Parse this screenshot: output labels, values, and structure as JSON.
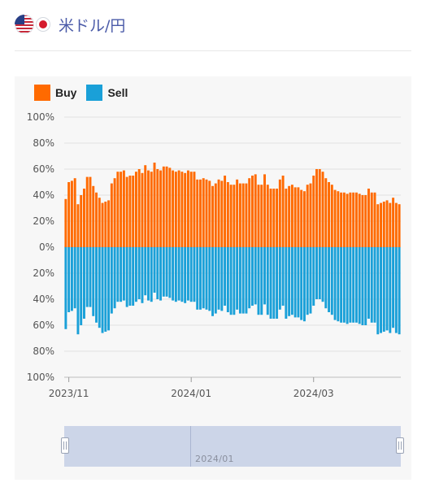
{
  "header": {
    "title": "米ドル/円",
    "flag_icons": [
      "us-flag-icon",
      "japan-flag-icon"
    ]
  },
  "zoom": {
    "label": "2024/01"
  },
  "chart_data": {
    "type": "bar",
    "legend": [
      {
        "name": "Buy",
        "color": "#ff6a00"
      },
      {
        "name": "Sell",
        "color": "#1aa0d8"
      }
    ],
    "legend_position": "top-left",
    "grid": true,
    "y_tick_labels": [
      "100%",
      "80%",
      "60%",
      "40%",
      "20%",
      "0%",
      "20%",
      "40%",
      "60%",
      "80%",
      "100%"
    ],
    "ylim": [
      -100,
      100
    ],
    "x_tick_labels": [
      {
        "label": "2023/11",
        "index": 1
      },
      {
        "label": "2024/01",
        "index": 41
      },
      {
        "label": "2024/03",
        "index": 81
      }
    ],
    "series": [
      {
        "name": "Buy",
        "color": "#ff6a00",
        "values": [
          37,
          50,
          51,
          53,
          33,
          40,
          45,
          54,
          54,
          47,
          42,
          38,
          34,
          35,
          36,
          49,
          53,
          58,
          58,
          59,
          54,
          55,
          55,
          58,
          60,
          57,
          63,
          59,
          58,
          65,
          60,
          59,
          62,
          62,
          61,
          59,
          58,
          59,
          58,
          57,
          59,
          58,
          58,
          52,
          52,
          53,
          52,
          51,
          47,
          49,
          52,
          51,
          55,
          50,
          48,
          48,
          52,
          49,
          49,
          49,
          53,
          55,
          56,
          48,
          48,
          56,
          48,
          45,
          45,
          45,
          52,
          55,
          45,
          47,
          48,
          46,
          46,
          44,
          43,
          48,
          49,
          55,
          60,
          60,
          58,
          53,
          50,
          48,
          44,
          43,
          42,
          42,
          41,
          42,
          42,
          42,
          41,
          40,
          40,
          45,
          42,
          42,
          33,
          34,
          35,
          36,
          34,
          38,
          34,
          33
        ]
      },
      {
        "name": "Sell",
        "color": "#1aa0d8",
        "values": [
          63,
          50,
          49,
          47,
          67,
          60,
          55,
          46,
          46,
          53,
          58,
          62,
          66,
          65,
          64,
          51,
          47,
          42,
          42,
          41,
          46,
          45,
          45,
          42,
          40,
          43,
          37,
          41,
          42,
          35,
          40,
          41,
          38,
          38,
          39,
          41,
          42,
          41,
          42,
          43,
          41,
          42,
          42,
          48,
          48,
          47,
          48,
          49,
          53,
          51,
          48,
          49,
          45,
          50,
          52,
          52,
          48,
          51,
          51,
          51,
          47,
          45,
          44,
          52,
          52,
          44,
          52,
          55,
          55,
          55,
          48,
          45,
          55,
          53,
          52,
          54,
          54,
          56,
          57,
          52,
          51,
          45,
          40,
          40,
          42,
          47,
          50,
          52,
          56,
          57,
          58,
          58,
          59,
          58,
          58,
          58,
          59,
          60,
          60,
          55,
          58,
          58,
          67,
          66,
          65,
          64,
          66,
          62,
          66,
          67
        ]
      }
    ]
  }
}
